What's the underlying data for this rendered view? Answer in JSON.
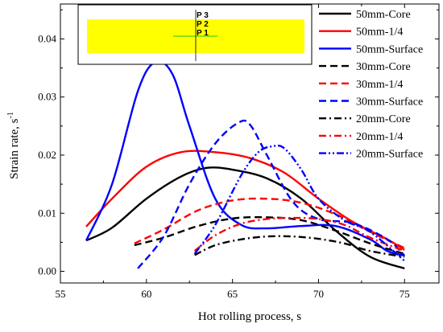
{
  "chart_data": {
    "type": "line",
    "xlabel": "Hot rolling process, s",
    "ylabel": "Strain rate, s",
    "ylabel_superscript": "-1",
    "xlim": [
      55,
      77
    ],
    "ylim": [
      -0.002,
      0.046
    ],
    "xticks": [
      "55",
      "60",
      "65",
      "70",
      "75"
    ],
    "xtick_values": [
      55,
      60,
      65,
      70,
      75
    ],
    "yticks": [
      "0.00",
      "0.01",
      "0.02",
      "0.03",
      "0.04"
    ],
    "ytick_values": [
      0,
      0.01,
      0.02,
      0.03,
      0.04
    ],
    "grid": false,
    "legend_position": "top-right",
    "inset": {
      "labels": [
        "P 3",
        "P 2",
        "P 1"
      ],
      "fill_color": "#ffff00",
      "marker_color": "#22c322"
    },
    "series": [
      {
        "name": "50mm-Core",
        "color": "#000000",
        "dash": "solid",
        "x": [
          56.5,
          58,
          60,
          62,
          63.5,
          65,
          67,
          69,
          71,
          73,
          75
        ],
        "y": [
          0.0053,
          0.0075,
          0.0125,
          0.0163,
          0.0178,
          0.0175,
          0.016,
          0.0125,
          0.007,
          0.0025,
          0.0005
        ]
      },
      {
        "name": "50mm-1/4",
        "color": "#ff0000",
        "dash": "solid",
        "x": [
          56.5,
          58,
          60,
          62,
          64,
          66,
          68,
          70,
          72,
          74,
          75
        ],
        "y": [
          0.0077,
          0.0125,
          0.018,
          0.0205,
          0.0205,
          0.0195,
          0.017,
          0.0125,
          0.0085,
          0.0055,
          0.0037
        ]
      },
      {
        "name": "50mm-Surface",
        "color": "#0000ff",
        "dash": "solid",
        "x": [
          56.5,
          58,
          59.5,
          60.5,
          61.5,
          62.5,
          64,
          65.5,
          67,
          69,
          71,
          73,
          74,
          75
        ],
        "y": [
          0.0053,
          0.015,
          0.031,
          0.036,
          0.034,
          0.025,
          0.0125,
          0.008,
          0.0074,
          0.0078,
          0.0078,
          0.0055,
          0.0035,
          0.0027
        ]
      },
      {
        "name": "30mm-Core",
        "color": "#000000",
        "dash": "dashed",
        "x": [
          59.3,
          61,
          63,
          65,
          67,
          69,
          71,
          73,
          75
        ],
        "y": [
          0.0045,
          0.0058,
          0.0078,
          0.0091,
          0.0093,
          0.0088,
          0.007,
          0.0048,
          0.003
        ]
      },
      {
        "name": "30mm-1/4",
        "color": "#ff0000",
        "dash": "dashed",
        "x": [
          59.3,
          61,
          63,
          65,
          67,
          69,
          71,
          73,
          75
        ],
        "y": [
          0.0048,
          0.0072,
          0.0105,
          0.0122,
          0.0125,
          0.0118,
          0.0098,
          0.0068,
          0.004
        ]
      },
      {
        "name": "30mm-Surface",
        "color": "#0000ff",
        "dash": "dashed",
        "x": [
          59.5,
          61,
          62.5,
          64,
          65.3,
          66,
          67,
          68.5,
          70,
          72,
          74,
          75
        ],
        "y": [
          0.0005,
          0.006,
          0.015,
          0.022,
          0.0255,
          0.0253,
          0.02,
          0.012,
          0.009,
          0.0083,
          0.0055,
          0.0027
        ]
      },
      {
        "name": "20mm-Core",
        "color": "#000000",
        "dash": "dashdot",
        "x": [
          62.8,
          64,
          65.5,
          67,
          68.5,
          70,
          71.5,
          73,
          75
        ],
        "y": [
          0.0028,
          0.0045,
          0.0055,
          0.006,
          0.006,
          0.0056,
          0.0048,
          0.0035,
          0.0025
        ]
      },
      {
        "name": "20mm-1/4",
        "color": "#ff0000",
        "dash": "dashdot",
        "x": [
          62.8,
          64,
          65.5,
          67,
          68.5,
          70,
          71.5,
          73,
          75
        ],
        "y": [
          0.0035,
          0.0062,
          0.0082,
          0.009,
          0.0092,
          0.009,
          0.008,
          0.0058,
          0.0035
        ]
      },
      {
        "name": "20mm-Surface",
        "color": "#0000ff",
        "dash": "dashdotdot",
        "x": [
          62.8,
          64,
          65.5,
          66.5,
          67.3,
          68,
          69,
          70,
          71.5,
          73,
          75
        ],
        "y": [
          0.003,
          0.008,
          0.0165,
          0.0205,
          0.0215,
          0.0212,
          0.0175,
          0.0125,
          0.0088,
          0.0068,
          0.0018
        ]
      }
    ]
  }
}
